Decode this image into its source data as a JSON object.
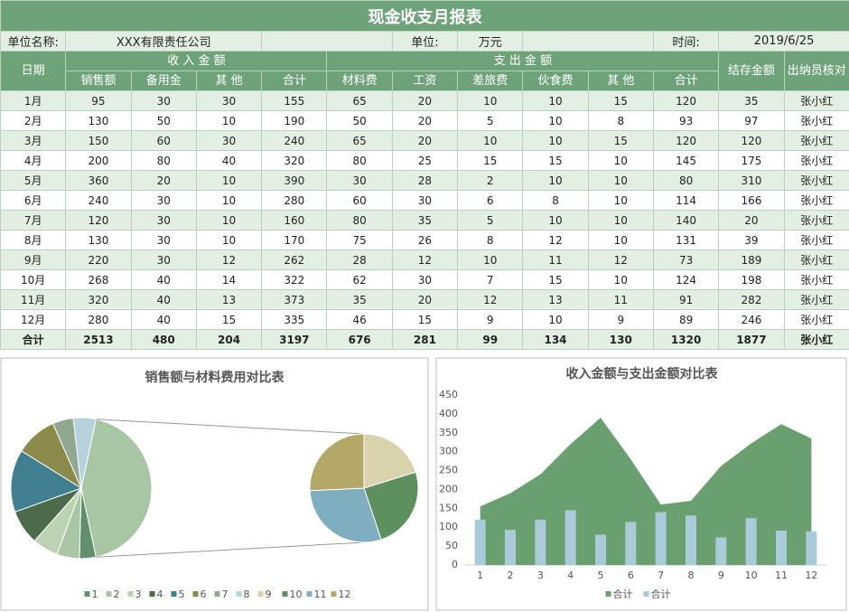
{
  "header": {
    "title": "现金收支月报表",
    "unit_name_label": "单位名称:",
    "unit_name": "XXX有限责任公司",
    "unit_label": "单位:",
    "unit": "万元",
    "time_label": "时间:",
    "time": "2019/6/25"
  },
  "table": {
    "group_headers": [
      "日期",
      "收 入 金 额",
      "支 出 金 额",
      "结存金额",
      "出纳员核对"
    ],
    "sub_headers": [
      "销售额",
      "备用金",
      "其 他",
      "合计",
      "材料费",
      "工资",
      "差旅费",
      "伙食费",
      "其 他",
      "合计"
    ],
    "rows": [
      [
        "1月",
        95,
        30,
        30,
        155,
        65,
        20,
        10,
        10,
        15,
        120,
        35,
        "张小红"
      ],
      [
        "2月",
        130,
        50,
        10,
        190,
        50,
        20,
        5,
        10,
        8,
        93,
        97,
        "张小红"
      ],
      [
        "3月",
        150,
        60,
        30,
        240,
        65,
        20,
        10,
        10,
        15,
        120,
        120,
        "张小红"
      ],
      [
        "4月",
        200,
        80,
        40,
        320,
        80,
        25,
        15,
        15,
        10,
        145,
        175,
        "张小红"
      ],
      [
        "5月",
        360,
        20,
        10,
        390,
        30,
        28,
        2,
        10,
        10,
        80,
        310,
        "张小红"
      ],
      [
        "6月",
        240,
        30,
        10,
        280,
        60,
        30,
        6,
        8,
        10,
        114,
        166,
        "张小红"
      ],
      [
        "7月",
        120,
        30,
        10,
        160,
        80,
        35,
        5,
        10,
        10,
        140,
        20,
        "张小红"
      ],
      [
        "8月",
        130,
        30,
        10,
        170,
        75,
        26,
        8,
        12,
        10,
        131,
        39,
        "张小红"
      ],
      [
        "9月",
        220,
        30,
        12,
        262,
        28,
        12,
        10,
        11,
        12,
        73,
        189,
        "张小红"
      ],
      [
        "10月",
        268,
        40,
        14,
        322,
        62,
        30,
        7,
        15,
        10,
        124,
        198,
        "张小红"
      ],
      [
        "11月",
        320,
        40,
        13,
        373,
        35,
        20,
        12,
        13,
        11,
        91,
        282,
        "张小红"
      ],
      [
        "12月",
        280,
        40,
        15,
        335,
        46,
        15,
        9,
        10,
        9,
        89,
        246,
        "张小红"
      ],
      [
        "合计",
        2513,
        480,
        204,
        3197,
        676,
        281,
        99,
        134,
        130,
        1320,
        1877,
        "张小红"
      ]
    ]
  },
  "chart_data": [
    {
      "type": "pie",
      "title": "销售额与材料费用对比表",
      "categories": [
        "1",
        "2",
        "3",
        "4",
        "5",
        "6",
        "7",
        "8",
        "9",
        "10",
        "11",
        "12"
      ],
      "values": [
        95,
        130,
        150,
        200,
        360,
        240,
        120,
        130,
        220,
        268,
        320,
        280
      ],
      "colors": [
        "#5f8f6c",
        "#a9c6a4",
        "#bcd3b3",
        "#4b6b4b",
        "#3f7f8f",
        "#8a8a4a",
        "#8fa88f",
        "#b6d2dc",
        "#d9d3ad",
        "#5e8f5e",
        "#7eaec0",
        "#b3a866"
      ],
      "split_last": 4
    },
    {
      "type": "combo",
      "title": "收入金额与支出金额对比表",
      "categories": [
        "1",
        "2",
        "3",
        "4",
        "5",
        "6",
        "7",
        "8",
        "9",
        "10",
        "11",
        "12"
      ],
      "series": [
        {
          "name": "合计",
          "type": "area",
          "color": "#6aa06f",
          "values": [
            155,
            190,
            240,
            320,
            390,
            280,
            160,
            170,
            262,
            322,
            373,
            335
          ]
        },
        {
          "name": "合计",
          "type": "bar",
          "color": "#a9cbd8",
          "values": [
            120,
            93,
            120,
            145,
            80,
            114,
            140,
            131,
            73,
            124,
            91,
            89
          ]
        }
      ],
      "ylim": [
        0,
        450
      ],
      "yticks": [
        0,
        50,
        100,
        150,
        200,
        250,
        300,
        350,
        400,
        450
      ],
      "grid": false
    }
  ]
}
